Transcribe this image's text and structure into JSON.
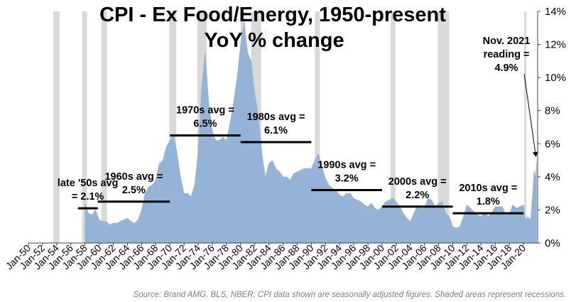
{
  "chart_data": {
    "type": "area",
    "title": "CPI - Ex Food/Energy, 1950-present",
    "subtitle": "YoY % change",
    "xlabel": "",
    "ylabel": "",
    "xlim": [
      1950,
      2022
    ],
    "ylim": [
      0,
      14
    ],
    "y_ticks": [
      "0%",
      "2%",
      "4%",
      "6%",
      "8%",
      "10%",
      "12%",
      "14%"
    ],
    "x_ticks": [
      "Jan-50",
      "Jan-52",
      "Jan-54",
      "Jan-56",
      "Jan-58",
      "Jan-60",
      "Jan-62",
      "Jan-64",
      "Jan-66",
      "Jan-68",
      "Jan-70",
      "Jan-72",
      "Jan-74",
      "Jan-76",
      "Jan-78",
      "Jan-80",
      "Jan-82",
      "Jan-84",
      "Jan-86",
      "Jan-88",
      "Jan-90",
      "Jan-92",
      "Jan-94",
      "Jan-96",
      "Jan-98",
      "Jan-00",
      "Jan-02",
      "Jan-04",
      "Jan-06",
      "Jan-08",
      "Jan-10",
      "Jan-12",
      "Jan-14",
      "Jan-16",
      "Jan-18",
      "Jan-20"
    ],
    "grid": false,
    "y_axis_side": "right",
    "colors": {
      "area": "#95b3d7",
      "recession": "#d9d9d9",
      "avg_line": "#000000"
    },
    "series": [
      {
        "points": [
          [
            1958.0,
            2.4
          ],
          [
            1958.5,
            1.8
          ],
          [
            1959.0,
            1.7
          ],
          [
            1959.5,
            2.0
          ],
          [
            1960.0,
            1.4
          ],
          [
            1960.5,
            1.3
          ],
          [
            1961.0,
            1.3
          ],
          [
            1961.5,
            1.1
          ],
          [
            1962.0,
            1.2
          ],
          [
            1962.5,
            1.2
          ],
          [
            1963.0,
            1.3
          ],
          [
            1963.5,
            1.4
          ],
          [
            1964.0,
            1.5
          ],
          [
            1964.5,
            1.3
          ],
          [
            1965.0,
            1.2
          ],
          [
            1965.5,
            1.4
          ],
          [
            1966.0,
            2.0
          ],
          [
            1966.5,
            3.0
          ],
          [
            1967.0,
            3.4
          ],
          [
            1967.5,
            3.5
          ],
          [
            1968.0,
            3.8
          ],
          [
            1968.5,
            4.8
          ],
          [
            1969.0,
            5.0
          ],
          [
            1969.5,
            5.8
          ],
          [
            1970.0,
            6.2
          ],
          [
            1970.5,
            6.5
          ],
          [
            1971.0,
            5.5
          ],
          [
            1971.5,
            4.0
          ],
          [
            1972.0,
            3.0
          ],
          [
            1972.5,
            3.0
          ],
          [
            1973.0,
            2.8
          ],
          [
            1973.5,
            3.5
          ],
          [
            1974.0,
            5.5
          ],
          [
            1974.5,
            9.5
          ],
          [
            1975.0,
            11.5
          ],
          [
            1975.5,
            8.5
          ],
          [
            1976.0,
            6.8
          ],
          [
            1976.5,
            6.2
          ],
          [
            1977.0,
            6.2
          ],
          [
            1977.5,
            6.4
          ],
          [
            1978.0,
            6.2
          ],
          [
            1978.5,
            7.2
          ],
          [
            1979.0,
            8.5
          ],
          [
            1979.5,
            10.0
          ],
          [
            1980.0,
            12.0
          ],
          [
            1980.5,
            13.4
          ],
          [
            1981.0,
            11.5
          ],
          [
            1981.5,
            11.0
          ],
          [
            1982.0,
            9.0
          ],
          [
            1982.5,
            7.8
          ],
          [
            1983.0,
            5.5
          ],
          [
            1983.5,
            4.0
          ],
          [
            1984.0,
            4.8
          ],
          [
            1984.5,
            5.0
          ],
          [
            1985.0,
            4.5
          ],
          [
            1985.5,
            4.3
          ],
          [
            1986.0,
            4.0
          ],
          [
            1986.5,
            4.0
          ],
          [
            1987.0,
            3.8
          ],
          [
            1987.5,
            4.2
          ],
          [
            1988.0,
            4.3
          ],
          [
            1988.5,
            4.4
          ],
          [
            1989.0,
            4.5
          ],
          [
            1989.5,
            4.5
          ],
          [
            1990.0,
            4.5
          ],
          [
            1990.5,
            5.0
          ],
          [
            1991.0,
            5.4
          ],
          [
            1991.5,
            4.6
          ],
          [
            1992.0,
            3.9
          ],
          [
            1992.5,
            3.5
          ],
          [
            1993.0,
            3.3
          ],
          [
            1993.5,
            3.2
          ],
          [
            1994.0,
            2.9
          ],
          [
            1994.5,
            2.8
          ],
          [
            1995.0,
            3.0
          ],
          [
            1995.5,
            3.0
          ],
          [
            1996.0,
            2.7
          ],
          [
            1996.5,
            2.6
          ],
          [
            1997.0,
            2.5
          ],
          [
            1997.5,
            2.3
          ],
          [
            1998.0,
            2.2
          ],
          [
            1998.5,
            2.4
          ],
          [
            1999.0,
            2.1
          ],
          [
            1999.5,
            2.0
          ],
          [
            2000.0,
            2.2
          ],
          [
            2000.5,
            2.5
          ],
          [
            2001.0,
            2.6
          ],
          [
            2001.5,
            2.7
          ],
          [
            2002.0,
            2.5
          ],
          [
            2002.5,
            2.2
          ],
          [
            2003.0,
            1.8
          ],
          [
            2003.5,
            1.5
          ],
          [
            2004.0,
            1.3
          ],
          [
            2004.5,
            1.8
          ],
          [
            2005.0,
            2.3
          ],
          [
            2005.5,
            2.1
          ],
          [
            2006.0,
            2.1
          ],
          [
            2006.5,
            2.7
          ],
          [
            2007.0,
            2.6
          ],
          [
            2007.5,
            2.2
          ],
          [
            2008.0,
            2.4
          ],
          [
            2008.5,
            2.5
          ],
          [
            2009.0,
            1.8
          ],
          [
            2009.5,
            1.6
          ],
          [
            2010.0,
            1.0
          ],
          [
            2010.5,
            0.9
          ],
          [
            2011.0,
            1.0
          ],
          [
            2011.5,
            1.6
          ],
          [
            2012.0,
            2.3
          ],
          [
            2012.5,
            2.1
          ],
          [
            2013.0,
            1.9
          ],
          [
            2013.5,
            1.7
          ],
          [
            2014.0,
            1.6
          ],
          [
            2014.5,
            1.9
          ],
          [
            2015.0,
            1.6
          ],
          [
            2015.5,
            1.8
          ],
          [
            2016.0,
            2.2
          ],
          [
            2016.5,
            2.2
          ],
          [
            2017.0,
            2.2
          ],
          [
            2017.5,
            1.7
          ],
          [
            2018.0,
            1.8
          ],
          [
            2018.5,
            2.3
          ],
          [
            2019.0,
            2.1
          ],
          [
            2019.5,
            2.2
          ],
          [
            2020.0,
            2.3
          ],
          [
            2020.3,
            1.4
          ],
          [
            2020.6,
            1.6
          ],
          [
            2021.0,
            1.4
          ],
          [
            2021.3,
            3.0
          ],
          [
            2021.5,
            4.4
          ],
          [
            2021.7,
            4.0
          ],
          [
            2021.85,
            4.9
          ]
        ]
      }
    ],
    "recessions": [
      [
        1953.5,
        1954.4
      ],
      [
        1957.6,
        1958.3
      ],
      [
        1960.3,
        1961.1
      ],
      [
        1969.9,
        1970.9
      ],
      [
        1973.9,
        1975.2
      ],
      [
        1980.0,
        1980.5
      ],
      [
        1981.5,
        1982.9
      ],
      [
        1990.5,
        1991.2
      ],
      [
        2001.2,
        2001.9
      ],
      [
        2007.9,
        2009.5
      ],
      [
        2020.1,
        2020.4
      ]
    ],
    "decade_averages": [
      {
        "label": [
          "late '50s avg",
          "= 2.1%"
        ],
        "value": 2.1,
        "start": 1957.0,
        "end": 1959.8
      },
      {
        "label": [
          "1960s avg =",
          "2.5%"
        ],
        "value": 2.5,
        "start": 1959.8,
        "end": 1970.0
      },
      {
        "label": [
          "1970s avg =",
          "6.5%"
        ],
        "value": 6.5,
        "start": 1970.0,
        "end": 1980.0
      },
      {
        "label": [
          "1980s avg =",
          "6.1%"
        ],
        "value": 6.1,
        "start": 1980.0,
        "end": 1990.0
      },
      {
        "label": [
          "1990s avg =",
          "3.2%"
        ],
        "value": 3.2,
        "start": 1990.0,
        "end": 2000.0
      },
      {
        "label": [
          "2000s avg =",
          "2.2%"
        ],
        "value": 2.2,
        "start": 2000.0,
        "end": 2010.0
      },
      {
        "label": [
          "2010s avg =",
          "1.8%"
        ],
        "value": 1.8,
        "start": 2010.0,
        "end": 2020.0
      }
    ],
    "annotation": {
      "lines": [
        "Nov. 2021",
        "reading =",
        "4.9%"
      ],
      "point": [
        2021.85,
        4.9
      ]
    },
    "source": "Source: Brand AMG, BLS, NBER; CPI data shown are seasonally adjusted figures. Shaded areas represent recessions."
  }
}
